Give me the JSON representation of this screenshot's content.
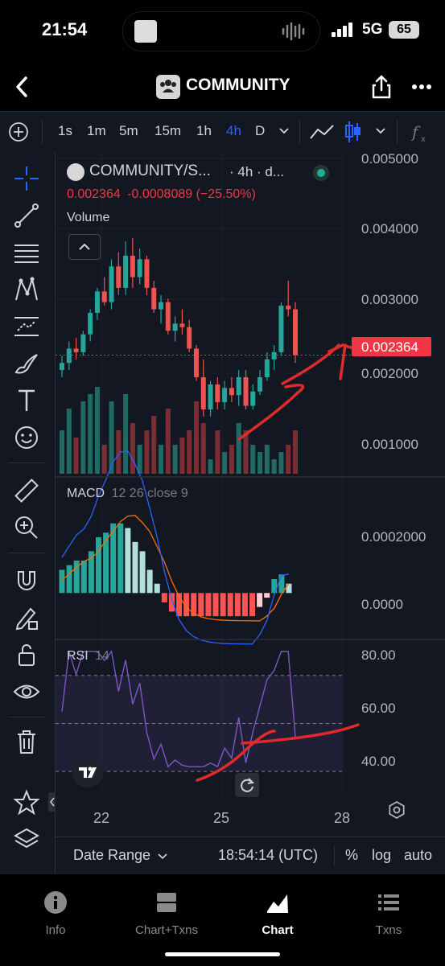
{
  "status_bar": {
    "time": "21:54",
    "network": "5G",
    "battery": "65"
  },
  "nav": {
    "title": "COMMUNITY"
  },
  "toolbar": {
    "intervals": [
      "1s",
      "1m",
      "5m",
      "15m",
      "1h",
      "4h",
      "D"
    ],
    "active_interval": "4h"
  },
  "legend": {
    "symbol": "COMMUNITY/S...",
    "interval": "· 4h · d...",
    "price": "0.002364",
    "change": "-0.0008089",
    "change_pct": "(−25.50%)",
    "volume_label": "Volume"
  },
  "price_axis": {
    "ticks": [
      "0.005000",
      "0.004000",
      "0.003000",
      "0.002000",
      "0.001000"
    ],
    "last_price": "0.002364"
  },
  "macd": {
    "label": "MACD",
    "params": "12 26 close 9",
    "ticks": [
      "0.0002000",
      "0.0000"
    ]
  },
  "rsi": {
    "label": "RSI",
    "params": "14",
    "ticks": [
      "80.00",
      "60.00",
      "40.00"
    ]
  },
  "time_axis": {
    "ticks": [
      "22",
      "25",
      "28"
    ]
  },
  "footer": {
    "date_range": "Date Range",
    "clock": "18:54:14 (UTC)",
    "percent": "%",
    "log": "log",
    "auto": "auto"
  },
  "tabs": [
    {
      "label": "Info",
      "icon": "info-icon"
    },
    {
      "label": "Chart+Txns",
      "icon": "split-view-icon"
    },
    {
      "label": "Chart",
      "icon": "chart-icon",
      "active": true
    },
    {
      "label": "Txns",
      "icon": "list-icon"
    }
  ],
  "colors": {
    "up": "#26a69a",
    "down": "#ef5350",
    "macd": "#2962ff",
    "signal": "#ff6d00",
    "rsi": "#7e57c2",
    "price_label": "#f23645",
    "accent": "#2962ff"
  },
  "chart_data": {
    "type": "candlestick",
    "series": [
      {
        "name": "COMMUNITY/S...",
        "values": [
          {
            "o": 0.00215,
            "h": 0.00235,
            "l": 0.00205,
            "c": 0.00225
          },
          {
            "o": 0.00225,
            "h": 0.00255,
            "l": 0.00215,
            "c": 0.00245
          },
          {
            "o": 0.00245,
            "h": 0.0026,
            "l": 0.0023,
            "c": 0.0024
          },
          {
            "o": 0.0024,
            "h": 0.0027,
            "l": 0.00235,
            "c": 0.00265
          },
          {
            "o": 0.00265,
            "h": 0.003,
            "l": 0.00255,
            "c": 0.00295
          },
          {
            "o": 0.00295,
            "h": 0.0033,
            "l": 0.00285,
            "c": 0.00325
          },
          {
            "o": 0.00325,
            "h": 0.00345,
            "l": 0.00305,
            "c": 0.0031
          },
          {
            "o": 0.0031,
            "h": 0.0037,
            "l": 0.003,
            "c": 0.0036
          },
          {
            "o": 0.0036,
            "h": 0.0038,
            "l": 0.0032,
            "c": 0.0033
          },
          {
            "o": 0.0033,
            "h": 0.00395,
            "l": 0.0032,
            "c": 0.00375
          },
          {
            "o": 0.00375,
            "h": 0.004,
            "l": 0.0033,
            "c": 0.00345
          },
          {
            "o": 0.00345,
            "h": 0.00385,
            "l": 0.00335,
            "c": 0.0037
          },
          {
            "o": 0.0037,
            "h": 0.00375,
            "l": 0.0032,
            "c": 0.0033
          },
          {
            "o": 0.0033,
            "h": 0.0034,
            "l": 0.00295,
            "c": 0.003
          },
          {
            "o": 0.003,
            "h": 0.0032,
            "l": 0.0028,
            "c": 0.0031
          },
          {
            "o": 0.0031,
            "h": 0.00315,
            "l": 0.00265,
            "c": 0.0027
          },
          {
            "o": 0.0027,
            "h": 0.0029,
            "l": 0.00255,
            "c": 0.0028
          },
          {
            "o": 0.0028,
            "h": 0.003,
            "l": 0.00265,
            "c": 0.00275
          },
          {
            "o": 0.00275,
            "h": 0.00285,
            "l": 0.0024,
            "c": 0.00245
          },
          {
            "o": 0.00245,
            "h": 0.0025,
            "l": 0.002,
            "c": 0.00205
          },
          {
            "o": 0.00205,
            "h": 0.0023,
            "l": 0.0015,
            "c": 0.0016
          },
          {
            "o": 0.0016,
            "h": 0.002,
            "l": 0.0015,
            "c": 0.00195
          },
          {
            "o": 0.00195,
            "h": 0.00205,
            "l": 0.0016,
            "c": 0.0017
          },
          {
            "o": 0.0017,
            "h": 0.002,
            "l": 0.0016,
            "c": 0.0019
          },
          {
            "o": 0.0019,
            "h": 0.00205,
            "l": 0.0017,
            "c": 0.0018
          },
          {
            "o": 0.0018,
            "h": 0.00215,
            "l": 0.00165,
            "c": 0.00205
          },
          {
            "o": 0.00205,
            "h": 0.00215,
            "l": 0.0016,
            "c": 0.00165
          },
          {
            "o": 0.00165,
            "h": 0.00195,
            "l": 0.0016,
            "c": 0.00185
          },
          {
            "o": 0.00185,
            "h": 0.00215,
            "l": 0.0018,
            "c": 0.00205
          },
          {
            "o": 0.00205,
            "h": 0.0024,
            "l": 0.002,
            "c": 0.0023
          },
          {
            "o": 0.0023,
            "h": 0.0025,
            "l": 0.00215,
            "c": 0.0024
          },
          {
            "o": 0.0024,
            "h": 0.0031,
            "l": 0.00235,
            "c": 0.00305
          },
          {
            "o": 0.00305,
            "h": 0.0034,
            "l": 0.0029,
            "c": 0.003
          },
          {
            "o": 0.003,
            "h": 0.0031,
            "l": 0.00225,
            "c": 0.00236
          }
        ]
      }
    ],
    "volume": [
      0.3,
      0.45,
      0.25,
      0.5,
      0.55,
      0.6,
      0.2,
      0.5,
      0.3,
      0.55,
      0.35,
      0.2,
      0.3,
      0.4,
      0.2,
      0.45,
      0.2,
      0.25,
      0.3,
      0.5,
      0.35,
      0.1,
      0.3,
      0.15,
      0.2,
      0.35,
      0.3,
      0.2,
      0.15,
      0.2,
      0.1,
      0.15,
      0.2,
      0.3
    ],
    "macd_hist": [
      5e-05,
      6e-05,
      7e-05,
      7e-05,
      9e-05,
      0.00012,
      0.00013,
      0.00015,
      0.00015,
      0.00014,
      0.00011,
      9e-05,
      5e-05,
      2e-05,
      -2e-05,
      -4e-05,
      -5e-05,
      -5e-05,
      -5e-05,
      -5e-05,
      -5e-05,
      -5e-05,
      -5e-05,
      -5e-05,
      -5e-05,
      -5e-05,
      -5e-05,
      -3e-05,
      -1e-05,
      3e-05,
      4e-05,
      2e-05
    ],
    "ylim": [
      0.0007,
      0.0052
    ],
    "macd_ylim": [
      -0.0001,
      0.00025
    ],
    "rsi_ylim": [
      20,
      85
    ]
  }
}
